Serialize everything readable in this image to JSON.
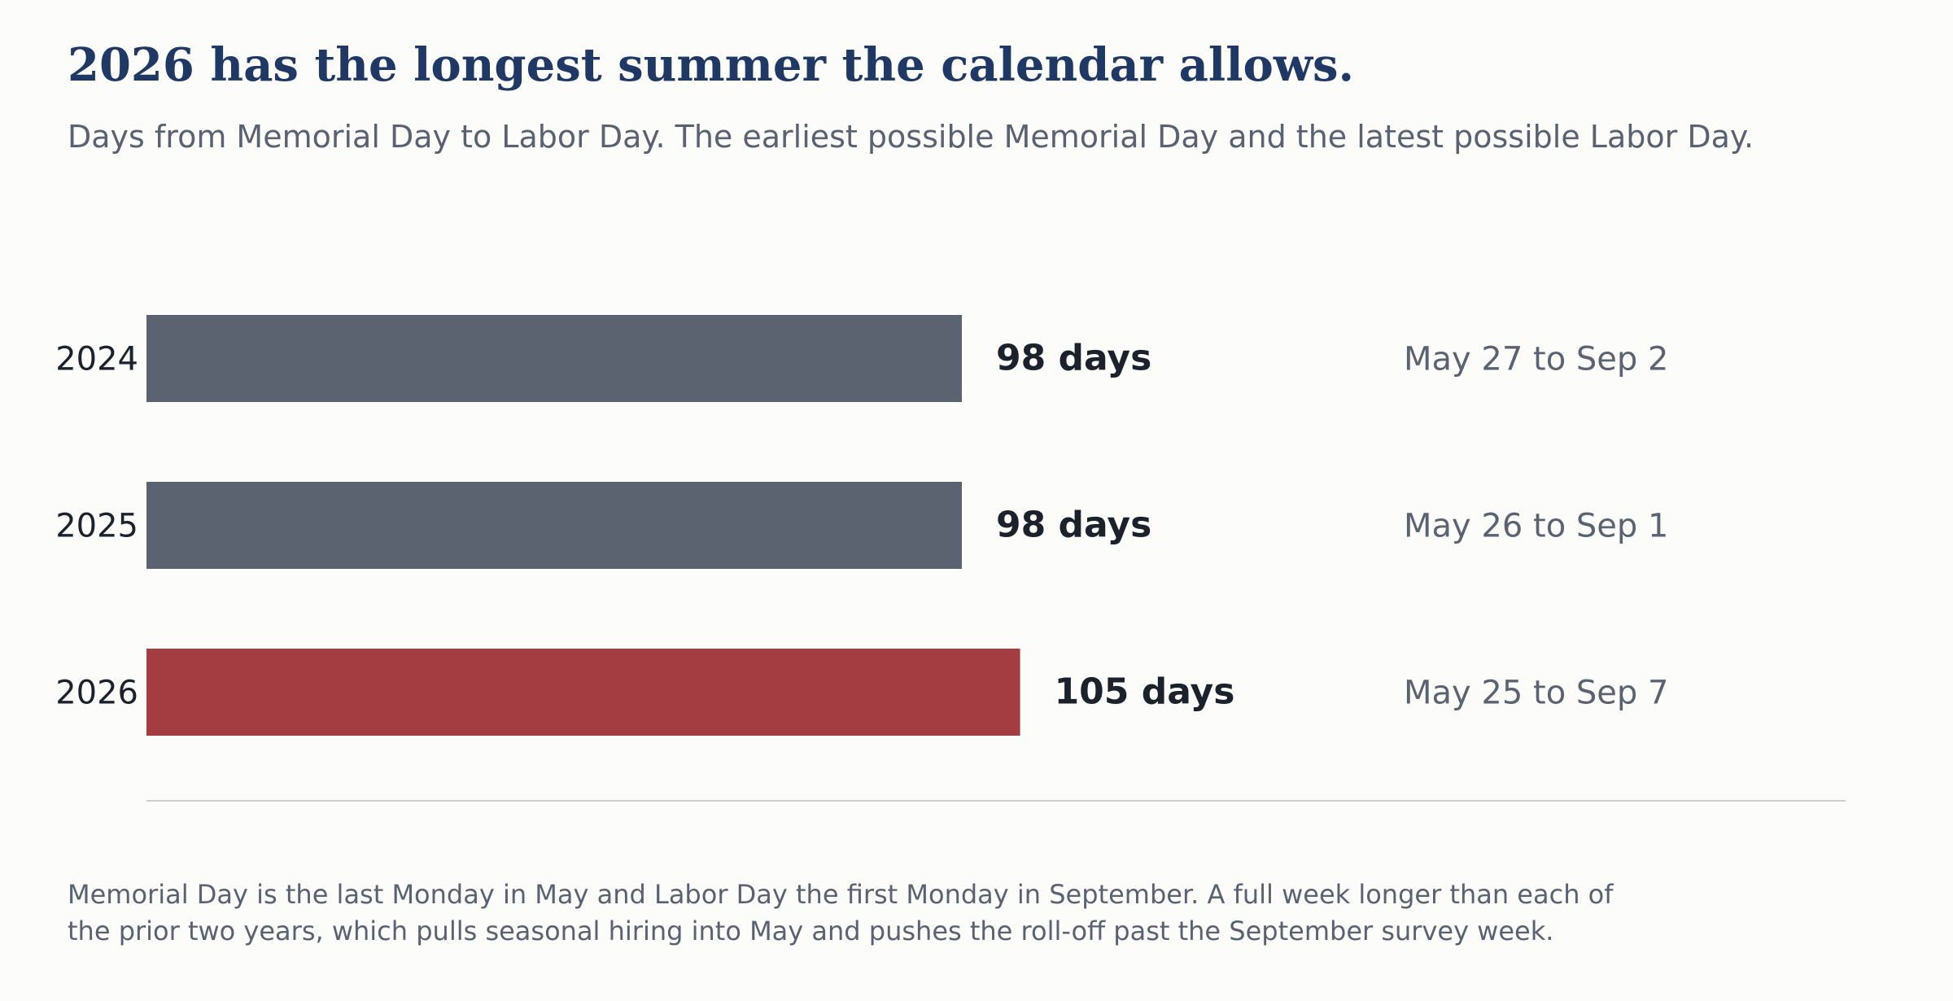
{
  "header": {
    "title": "2026 has the longest summer the calendar allows.",
    "subtitle": "Days from Memorial Day to Labor Day. The earliest possible Memorial Day and the latest possible Labor Day."
  },
  "footer": {
    "note_line_1": "Memorial Day is the last Monday in May and Labor Day the first Monday in September. A full week longer than each of",
    "note_line_2": "the prior two years, which pulls seasonal hiring into May and pushes the roll-off past the September survey week."
  },
  "colors": {
    "background": "#fcfcfa",
    "title": "#1f3864",
    "subtitle": "#5a6170",
    "bar_default": "#5b6371",
    "bar_highlight": "#a33d42",
    "value_label": "#1c222c",
    "date_label": "#5b6371",
    "tick_label": "#1c222c",
    "baseline": "#cccccc"
  },
  "chart_data": {
    "type": "bar",
    "orientation": "horizontal",
    "categories": [
      "2024",
      "2025",
      "2026"
    ],
    "values": [
      98,
      98,
      105
    ],
    "value_labels": [
      "98 days",
      "98 days",
      "105 days"
    ],
    "date_ranges": [
      "May 27 to Sep 2",
      "May 26 to Sep 1",
      "May 25 to Sep 7"
    ],
    "highlight": "2026",
    "xlim": [
      0,
      200
    ],
    "grid": false,
    "legend": "none"
  }
}
